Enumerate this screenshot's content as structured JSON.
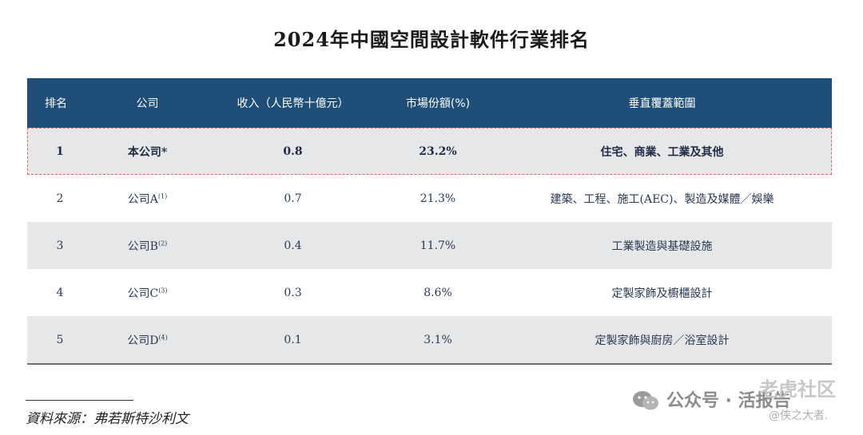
{
  "title": "2024年中國空間設計軟件行業排名",
  "table": {
    "headers": {
      "rank": "排名",
      "company": "公司",
      "revenue": "收入（人民幣十億元）",
      "share": "市場份額(%)",
      "scope": "垂直覆蓋範圍"
    },
    "rows": [
      {
        "rank": "1",
        "company": "本公司*",
        "note": "",
        "revenue": "0.8",
        "share": "23.2%",
        "scope": "住宅、商業、工業及其他"
      },
      {
        "rank": "2",
        "company": "公司A",
        "note": "(1)",
        "revenue": "0.7",
        "share": "21.3%",
        "scope": "建築、工程、施工(AEC)、製造及媒體／娛樂"
      },
      {
        "rank": "3",
        "company": "公司B",
        "note": "(2)",
        "revenue": "0.4",
        "share": "11.7%",
        "scope": "工業製造與基礎設施"
      },
      {
        "rank": "4",
        "company": "公司C",
        "note": "(3)",
        "revenue": "0.3",
        "share": "8.6%",
        "scope": "定製家飾及櫥櫃設計"
      },
      {
        "rank": "5",
        "company": "公司D",
        "note": "(4)",
        "revenue": "0.1",
        "share": "3.1%",
        "scope": "定製家飾與廚房／浴室設計"
      }
    ]
  },
  "source": "資料來源：弗若斯特沙利文",
  "watermark": {
    "main": "公众号 · 活报告",
    "top": "老虎社区",
    "sub": "@侠之大者."
  },
  "colors": {
    "header_bg": "#1f4e79",
    "row_shade": "#e6e7e8",
    "highlight_border": "#e36666"
  }
}
